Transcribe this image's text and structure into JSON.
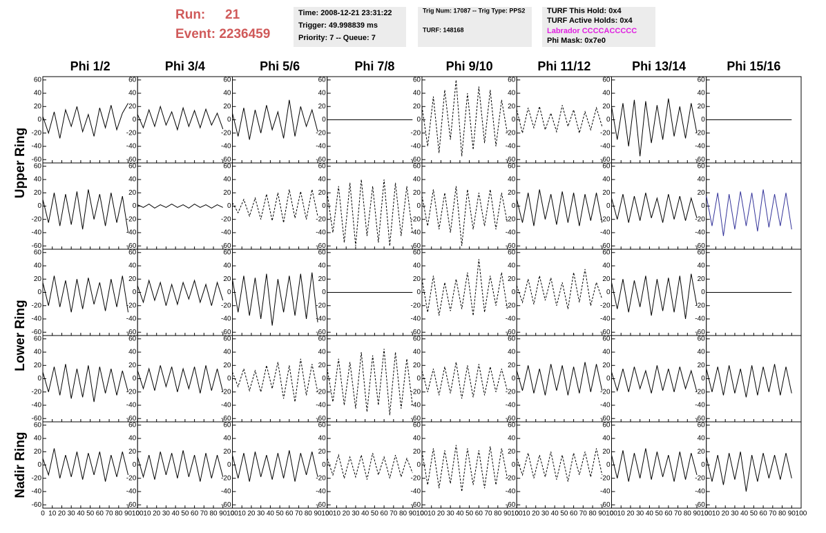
{
  "header": {
    "run_label": "Run:",
    "run": "21",
    "event": "Event: 2236459",
    "time": "Time: 2008-12-21 23:31:22",
    "trigger": "Trigger: 49.998839 ms",
    "priority": "Priority: 7 -- Queue: 7",
    "trig_num": "Trig Num: 17087 -- Trig Type: PPS2",
    "turf": "TURF: 148168",
    "turf_hold": "TURF This Hold: 0x4",
    "turf_active": "TURF Active Holds: 0x4",
    "labrador": "Labrador CCCCACCCCC",
    "phi_mask": "Phi Mask: 0x7e0"
  },
  "columns": [
    "Phi 1/2",
    "Phi 3/4",
    "Phi 5/6",
    "Phi 7/8",
    "Phi 9/10",
    "Phi 11/12",
    "Phi 13/14",
    "Phi 15/16"
  ],
  "rows": [
    "Upper Ring",
    "Lower Ring",
    "Nadir Ring"
  ],
  "chart_data": {
    "type": "line",
    "xlim": [
      0,
      100
    ],
    "xticks": [
      0,
      10,
      20,
      30,
      40,
      50,
      60,
      70,
      80,
      90,
      100
    ],
    "ylim": [
      -65,
      65
    ],
    "yticks": [
      -60,
      -40,
      -20,
      0,
      20,
      40,
      60
    ],
    "x": [
      0,
      6,
      12,
      18,
      24,
      30,
      36,
      42,
      48,
      54,
      60,
      66,
      72,
      78,
      84,
      90
    ],
    "series": [
      {
        "color": "#000000",
        "dash": false,
        "values": [
          5,
          -20,
          12,
          -28,
          15,
          -10,
          20,
          -18,
          8,
          -25,
          18,
          -12,
          22,
          -15,
          10,
          25
        ]
      },
      {
        "color": "#000000",
        "dash": false,
        "values": [
          8,
          -12,
          15,
          -10,
          20,
          -8,
          12,
          -15,
          18,
          -10,
          14,
          -12,
          16,
          -8,
          10,
          -14
        ]
      },
      {
        "color": "#000000",
        "dash": false,
        "values": [
          10,
          -25,
          18,
          -30,
          15,
          -20,
          22,
          -15,
          12,
          -28,
          30,
          -25,
          20,
          -10,
          15,
          -18
        ]
      },
      {
        "color": "#000000",
        "dash": false,
        "values": [
          0,
          0,
          0,
          0,
          0,
          0,
          0,
          0,
          0,
          0,
          0,
          0,
          0,
          0,
          0,
          0
        ]
      },
      {
        "color": "#000000",
        "dash": true,
        "values": [
          20,
          -40,
          35,
          -50,
          45,
          -30,
          60,
          -55,
          40,
          -45,
          50,
          -35,
          45,
          -40,
          30,
          -20
        ]
      },
      {
        "color": "#000000",
        "dash": true,
        "values": [
          15,
          -20,
          18,
          -12,
          20,
          -15,
          10,
          -18,
          22,
          -10,
          15,
          -20,
          12,
          -15,
          18,
          -10
        ]
      },
      {
        "color": "#000000",
        "dash": false,
        "values": [
          20,
          -30,
          25,
          -40,
          30,
          -55,
          28,
          -35,
          22,
          -30,
          32,
          -25,
          20,
          -28,
          25,
          -20
        ]
      },
      {
        "color": "#000000",
        "dash": false,
        "values": [
          0,
          0,
          0,
          0,
          0,
          0,
          0,
          0,
          0,
          0,
          0,
          0,
          0,
          0,
          0,
          0
        ]
      },
      {
        "color": "#000000",
        "dash": false,
        "values": [
          10,
          -25,
          20,
          -30,
          18,
          -28,
          22,
          -35,
          25,
          -20,
          18,
          -30,
          20,
          -25,
          15,
          -40
        ]
      },
      {
        "color": "#000000",
        "dash": false,
        "values": [
          2,
          -2,
          3,
          -3,
          2,
          -2,
          3,
          -2,
          2,
          -3,
          3,
          -2,
          2,
          -3,
          2,
          -2
        ]
      },
      {
        "color": "#000000",
        "dash": true,
        "values": [
          5,
          -10,
          10,
          -15,
          12,
          -20,
          18,
          -22,
          20,
          -25,
          25,
          -18,
          22,
          -20,
          25,
          -15
        ]
      },
      {
        "color": "#000000",
        "dash": true,
        "values": [
          20,
          -40,
          30,
          -55,
          35,
          -60,
          40,
          -45,
          30,
          -55,
          40,
          -60,
          35,
          -45,
          30,
          -40
        ]
      },
      {
        "color": "#000000",
        "dash": true,
        "values": [
          15,
          -30,
          25,
          -35,
          20,
          -40,
          30,
          -60,
          25,
          -35,
          20,
          -30,
          25,
          -35,
          20,
          -25
        ]
      },
      {
        "color": "#000000",
        "dash": false,
        "values": [
          10,
          -25,
          20,
          -30,
          25,
          -20,
          18,
          -28,
          22,
          -25,
          20,
          -30,
          18,
          -22,
          20,
          -25
        ]
      },
      {
        "color": "#000000",
        "dash": false,
        "values": [
          12,
          -20,
          18,
          -25,
          15,
          -22,
          20,
          -18,
          12,
          -25,
          18,
          -20,
          15,
          -22,
          12,
          -18
        ]
      },
      {
        "color": "#333399",
        "dash": false,
        "values": [
          15,
          -30,
          20,
          -45,
          18,
          -35,
          22,
          -30,
          20,
          -38,
          25,
          -32,
          18,
          -30,
          20,
          -35
        ]
      },
      {
        "color": "#000000",
        "dash": false,
        "values": [
          15,
          -20,
          25,
          -22,
          18,
          -30,
          20,
          -25,
          22,
          -18,
          15,
          -28,
          20,
          -22,
          25,
          -30
        ]
      },
      {
        "color": "#000000",
        "dash": false,
        "values": [
          10,
          -15,
          18,
          -12,
          15,
          -20,
          12,
          -18,
          15,
          -10,
          18,
          -15,
          12,
          -20,
          15,
          -12
        ]
      },
      {
        "color": "#000000",
        "dash": false,
        "values": [
          20,
          -30,
          25,
          -35,
          22,
          -40,
          28,
          -50,
          20,
          -30,
          25,
          -35,
          28,
          -40,
          30,
          -45
        ]
      },
      {
        "color": "#000000",
        "dash": false,
        "values": [
          0,
          0,
          0,
          0,
          0,
          0,
          0,
          0,
          0,
          0,
          0,
          0,
          0,
          0,
          0,
          0
        ]
      },
      {
        "color": "#000000",
        "dash": true,
        "values": [
          20,
          -30,
          25,
          -35,
          15,
          -28,
          20,
          -25,
          30,
          -35,
          50,
          -30,
          25,
          -20,
          30,
          -25
        ]
      },
      {
        "color": "#000000",
        "dash": true,
        "values": [
          10,
          -15,
          20,
          -18,
          25,
          -12,
          22,
          -20,
          15,
          -25,
          30,
          -15,
          35,
          -20,
          15,
          -10
        ]
      },
      {
        "color": "#000000",
        "dash": false,
        "values": [
          15,
          -25,
          20,
          -30,
          18,
          -22,
          25,
          -35,
          20,
          -28,
          22,
          -30,
          25,
          -40,
          28,
          -20
        ]
      },
      {
        "color": "#000000",
        "dash": false,
        "values": [
          0,
          0,
          0,
          0,
          0,
          0,
          0,
          0,
          0,
          0,
          0,
          0,
          0,
          0,
          0,
          0
        ]
      },
      {
        "color": "#000000",
        "dash": false,
        "values": [
          10,
          -20,
          18,
          -25,
          22,
          -30,
          15,
          -28,
          20,
          -35,
          18,
          -22,
          15,
          -25,
          12,
          -20
        ]
      },
      {
        "color": "#000000",
        "dash": false,
        "values": [
          12,
          -15,
          15,
          -18,
          20,
          -12,
          18,
          -20,
          15,
          -15,
          18,
          -22,
          20,
          -18,
          15,
          -20
        ]
      },
      {
        "color": "#000000",
        "dash": true,
        "values": [
          10,
          -12,
          15,
          -18,
          12,
          -20,
          20,
          -15,
          25,
          -30,
          20,
          -35,
          30,
          -25,
          22,
          -20
        ]
      },
      {
        "color": "#000000",
        "dash": true,
        "values": [
          15,
          -35,
          30,
          -40,
          25,
          -45,
          40,
          -50,
          35,
          -40,
          45,
          -55,
          40,
          -45,
          30,
          -40
        ]
      },
      {
        "color": "#000000",
        "dash": true,
        "values": [
          12,
          -20,
          15,
          -25,
          18,
          -22,
          25,
          -30,
          20,
          -28,
          22,
          -25,
          18,
          -20,
          15,
          -18
        ]
      },
      {
        "color": "#000000",
        "dash": false,
        "values": [
          12,
          -18,
          20,
          -22,
          15,
          -25,
          22,
          -18,
          20,
          -25,
          18,
          -22,
          25,
          -20,
          22,
          -18
        ]
      },
      {
        "color": "#000000",
        "dash": false,
        "values": [
          10,
          -18,
          15,
          -20,
          18,
          -15,
          12,
          -22,
          20,
          -18,
          15,
          -20,
          18,
          -15,
          12,
          -20
        ]
      },
      {
        "color": "#000000",
        "dash": false,
        "values": [
          15,
          -20,
          18,
          -25,
          20,
          -22,
          15,
          -28,
          20,
          -25,
          18,
          -20,
          22,
          -25,
          18,
          -22
        ]
      },
      {
        "color": "#000000",
        "dash": false,
        "values": [
          10,
          -15,
          25,
          -20,
          15,
          -18,
          20,
          -22,
          18,
          -15,
          20,
          -25,
          15,
          -18,
          20,
          -15
        ]
      },
      {
        "color": "#000000",
        "dash": false,
        "values": [
          12,
          -18,
          15,
          -22,
          20,
          -15,
          18,
          -20,
          22,
          -18,
          15,
          -25,
          18,
          -20,
          15,
          -18
        ]
      },
      {
        "color": "#000000",
        "dash": false,
        "values": [
          15,
          -20,
          18,
          -25,
          20,
          -18,
          15,
          -22,
          18,
          -20,
          22,
          -25,
          18,
          -15,
          20,
          -18
        ]
      },
      {
        "color": "#000000",
        "dash": true,
        "values": [
          10,
          -15,
          15,
          -20,
          12,
          -18,
          15,
          -22,
          18,
          -15,
          12,
          -20,
          15,
          -18,
          10,
          -12
        ]
      },
      {
        "color": "#000000",
        "dash": true,
        "values": [
          20,
          -30,
          25,
          -35,
          22,
          -28,
          30,
          -40,
          25,
          -30,
          22,
          -35,
          28,
          -30,
          25,
          -20
        ]
      },
      {
        "color": "#000000",
        "dash": true,
        "values": [
          10,
          -15,
          18,
          -20,
          15,
          -18,
          20,
          -22,
          15,
          -25,
          18,
          -15,
          20,
          -18,
          25,
          -15
        ]
      },
      {
        "color": "#000000",
        "dash": false,
        "values": [
          15,
          -20,
          22,
          -25,
          18,
          -20,
          25,
          -22,
          20,
          -18,
          15,
          -25,
          20,
          -22,
          18,
          -15
        ]
      },
      {
        "color": "#000000",
        "dash": false,
        "values": [
          12,
          -25,
          15,
          -30,
          18,
          -22,
          20,
          -40,
          15,
          -25,
          18,
          -20,
          15,
          -22,
          18,
          -20
        ]
      }
    ]
  }
}
